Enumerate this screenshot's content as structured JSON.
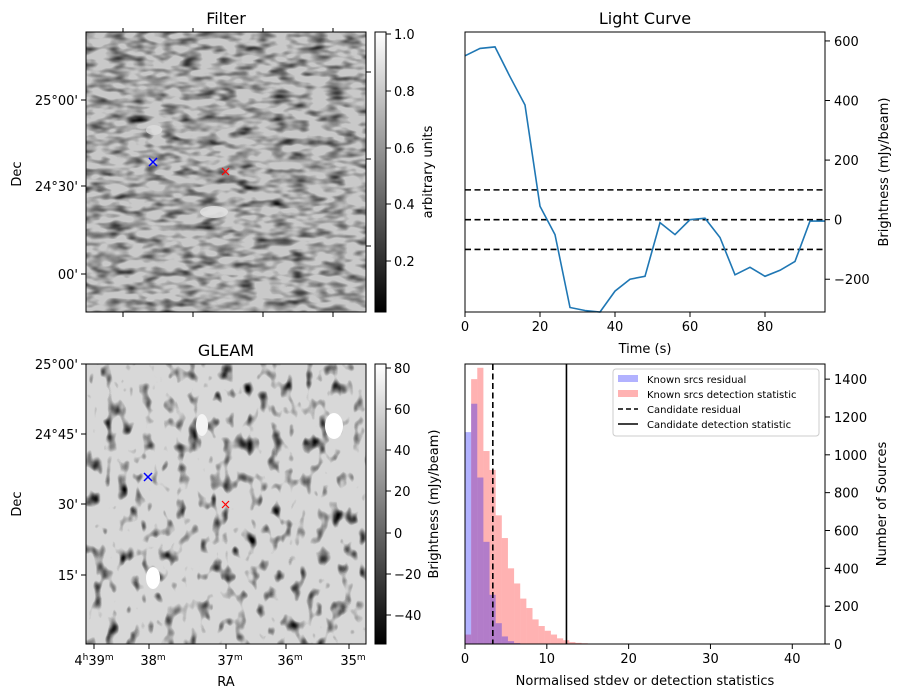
{
  "panels": {
    "filter": {
      "title": "Filter"
    },
    "gleam": {
      "title": "GLEAM"
    }
  },
  "axes": {
    "dec_label": "Dec",
    "ra_label": "RA",
    "filter_dec_ticks": [
      "25°00'",
      "24°30'",
      "00'"
    ],
    "gleam_dec_ticks": [
      "25°00'",
      "24°45'",
      "30'",
      "15'"
    ],
    "ra_ticks": [
      {
        "base": "4",
        "h": "h",
        "min": "39",
        "m": "m"
      },
      {
        "base": "38",
        "h": "",
        "min": "",
        "m": "m"
      },
      {
        "base": "37",
        "h": "",
        "min": "",
        "m": "m"
      },
      {
        "base": "36",
        "h": "",
        "min": "",
        "m": "m"
      },
      {
        "base": "35",
        "h": "",
        "min": "",
        "m": "m"
      }
    ]
  },
  "colorbars": {
    "filter": {
      "label": "arbitrary units",
      "ticks": [
        "1.0",
        "0.8",
        "0.6",
        "0.4",
        "0.2"
      ]
    },
    "gleam": {
      "label": "Brightness (mJy/beam)",
      "ticks": [
        "80",
        "60",
        "40",
        "20",
        "0",
        "−20",
        "−40"
      ]
    }
  },
  "markers": {
    "blue": "#0000ff",
    "red": "#ff0000"
  },
  "chart_data": [
    {
      "type": "line",
      "title": "Light Curve",
      "xlabel": "Time (s)",
      "ylabel": "Brightness (mJy/beam)",
      "xlim": [
        0,
        96
      ],
      "ylim": [
        -310,
        630
      ],
      "x_ticks": [
        0,
        20,
        40,
        60,
        80
      ],
      "y_ticks": [
        -200,
        0,
        200,
        400,
        600
      ],
      "y_tick_labels": [
        "−200",
        "0",
        "200",
        "400",
        "600"
      ],
      "series": [
        {
          "name": "light curve",
          "color": "#1f77b4",
          "x": [
            0,
            4,
            8,
            12,
            16,
            20,
            24,
            28,
            32,
            36,
            40,
            44,
            48,
            52,
            56,
            60,
            64,
            68,
            72,
            76,
            80,
            84,
            88,
            92,
            96
          ],
          "y": [
            550,
            575,
            580,
            480,
            385,
            45,
            -50,
            -295,
            -305,
            -310,
            -240,
            -200,
            -190,
            -10,
            -50,
            0,
            5,
            -60,
            -185,
            -160,
            -190,
            -170,
            -140,
            -5,
            -5
          ]
        }
      ],
      "hlines": [
        {
          "y": 100,
          "style": "dashed"
        },
        {
          "y": 0,
          "style": "dashed"
        },
        {
          "y": -100,
          "style": "dashed"
        }
      ]
    },
    {
      "type": "bar",
      "title": "",
      "xlabel": "Normalised stdev or detection statistics",
      "ylabel": "Number of Sources",
      "xlim": [
        0,
        44
      ],
      "ylim": [
        0,
        1480
      ],
      "x_ticks": [
        0,
        10,
        20,
        30,
        40
      ],
      "y_ticks": [
        0,
        200,
        400,
        600,
        800,
        1000,
        1200,
        1400
      ],
      "bin_width": 0.75,
      "series": [
        {
          "name": "Known srcs residual",
          "color": "#0000ff",
          "alpha": 0.3,
          "start": 0,
          "values": [
            1120,
            1270,
            880,
            540,
            260,
            110,
            40,
            15,
            5
          ]
        },
        {
          "name": "Known srcs detection statistic",
          "color": "#ff0000",
          "alpha": 0.3,
          "start": 0,
          "values": [
            50,
            1400,
            1460,
            1020,
            920,
            680,
            560,
            400,
            320,
            240,
            190,
            130,
            95,
            70,
            50,
            30,
            20,
            10,
            6,
            4,
            2,
            1,
            1,
            1,
            1,
            1,
            1,
            1
          ]
        }
      ],
      "vlines": [
        {
          "name": "Candidate residual",
          "x": 3.4,
          "style": "dashed"
        },
        {
          "name": "Candidate detection statistic",
          "x": 12.4,
          "style": "solid"
        }
      ],
      "legend_position": "top-right"
    }
  ]
}
